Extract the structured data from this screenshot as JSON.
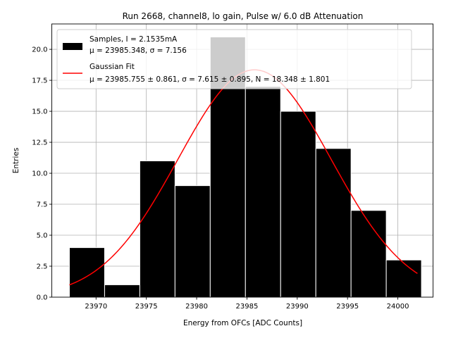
{
  "chart_data": {
    "type": "bar",
    "title": "Run 2668, channel8, lo gain, Pulse w/ 6.0 dB Attenuation",
    "xlabel": "Energy from OFCs [ADC Counts]",
    "ylabel": "Entries",
    "xlim": [
      23965.6,
      24003.5
    ],
    "ylim": [
      0,
      22.05
    ],
    "grid": true,
    "bin_edges": [
      23967.35,
      23970.85,
      23974.35,
      23977.85,
      23981.35,
      23984.85,
      23988.35,
      23991.85,
      23995.35,
      23998.85,
      24002.35
    ],
    "values": [
      4,
      1,
      11,
      9,
      21,
      17,
      15,
      12,
      7,
      3
    ],
    "bar_color": "#000000",
    "bar_edge_color": "#ffffff",
    "x_ticks": [
      23970,
      23975,
      23980,
      23985,
      23990,
      23995,
      24000
    ],
    "x_tick_labels": [
      "23970",
      "23975",
      "23980",
      "23985",
      "23990",
      "23995",
      "24000"
    ],
    "y_ticks": [
      0,
      2.5,
      5,
      7.5,
      10,
      12.5,
      15,
      17.5,
      20
    ],
    "y_tick_labels": [
      "0.0",
      "2.5",
      "5.0",
      "7.5",
      "10.0",
      "12.5",
      "15.0",
      "17.5",
      "20.0"
    ],
    "fit": {
      "type": "gaussian",
      "mu": 23985.755,
      "sigma": 7.615,
      "N": 18.348,
      "x_range": [
        23967.35,
        24001.95
      ],
      "color": "#ff0000"
    },
    "legend": {
      "position": "top-left",
      "entries": [
        {
          "kind": "patch",
          "color": "#000000",
          "line1": "Samples, I = 2.1535mA",
          "line2": "μ = 23985.348, σ = 7.156"
        },
        {
          "kind": "line",
          "color": "#ff0000",
          "line1": "Gaussian Fit",
          "line2": "μ = 23985.755 ± 0.861, σ = 7.615 ± 0.895, N = 18.348 ± 1.801"
        }
      ]
    }
  }
}
